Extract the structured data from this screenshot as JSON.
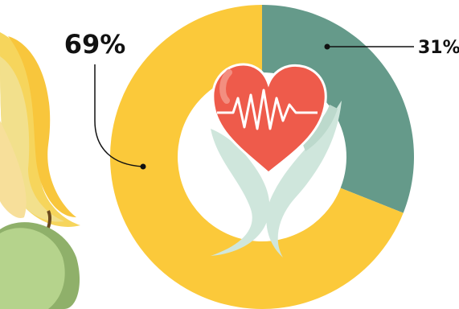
{
  "chart_data": {
    "type": "donut",
    "values": [
      31,
      69
    ],
    "value_labels": [
      "31%",
      "69%"
    ],
    "colors": [
      "#659a8a",
      "#fbc93a"
    ]
  }
}
